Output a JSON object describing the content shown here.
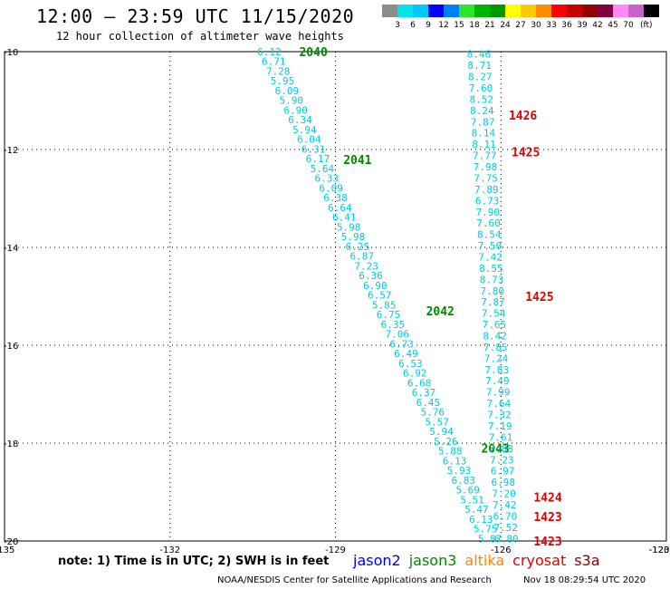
{
  "title": "12:00 – 23:59 UTC 11/15/2020",
  "subtitle": "12 hour collection of altimeter wave heights",
  "colorbar": {
    "unit": "(ft)",
    "colors": [
      "#8c8c8c",
      "#00e6e6",
      "#00c8ff",
      "#0000ff",
      "#0080ff",
      "#28e628",
      "#00b400",
      "#009600",
      "#ffff00",
      "#ffc800",
      "#ff8c00",
      "#ff0000",
      "#c80000",
      "#960000",
      "#800040",
      "#ff88ff",
      "#c864c8",
      "#000000"
    ],
    "labels": [
      "3",
      "6",
      "9",
      "12",
      "15",
      "18",
      "21",
      "24",
      "27",
      "30",
      "33",
      "36",
      "39",
      "42",
      "45",
      "70"
    ]
  },
  "chart_data": {
    "type": "scatter",
    "x_range": [
      -135,
      -123
    ],
    "y_range": [
      -20,
      -10
    ],
    "x_ticks": [
      "-135",
      "-132",
      "-129",
      "-126",
      "-123",
      "-120"
    ],
    "y_ticks": [
      "-10",
      "-12",
      "-14",
      "-16",
      "-18",
      "-20"
    ],
    "grid": true,
    "tracks": [
      {
        "satellite": "jason3",
        "color": "#00ccdd",
        "start": [
          -130.2,
          -10.0
        ],
        "end": [
          -126.2,
          -19.95
        ],
        "values": [
          "6.12",
          "6.71",
          "7.28",
          "5.95",
          "6.09",
          "5.90",
          "6.90",
          "6.34",
          "5.94",
          "6.04",
          "6.31",
          "6.17",
          "5.64",
          "6.33",
          "6.09",
          "6.38",
          "6.64",
          "6.41",
          "5.98",
          "5.98",
          "6.25",
          "6.87",
          "7.23",
          "6.36",
          "6.90",
          "6.57",
          "5.85",
          "6.75",
          "6.35",
          "7.06",
          "6.73",
          "6.49",
          "6.53",
          "6.92",
          "6.68",
          "6.37",
          "6.45",
          "5.76",
          "5.57",
          "5.94",
          "5.26",
          "5.88",
          "6.13",
          "5.93",
          "6.83",
          "5.69",
          "5.51",
          "5.47",
          "6.13",
          "5.75",
          "5.87"
        ],
        "time_labels": [
          {
            "text": "2040",
            "color": "#008800",
            "at": [
              -129.4,
              -10.0
            ]
          },
          {
            "text": "2041",
            "color": "#008800",
            "at": [
              -128.6,
              -12.2
            ]
          },
          {
            "text": "2042",
            "color": "#008800",
            "at": [
              -127.1,
              -15.3
            ]
          },
          {
            "text": "2043",
            "color": "#008800",
            "at": [
              -126.1,
              -18.1
            ]
          }
        ]
      },
      {
        "satellite": "jason2",
        "color": "#00ccdd",
        "start": [
          -126.4,
          -10.05
        ],
        "end": [
          -125.9,
          -19.95
        ],
        "values": [
          "8.46",
          "8.71",
          "8.27",
          "7.60",
          "8.52",
          "8.24",
          "7.87",
          "8.14",
          "8.11",
          "7.77",
          "7.98",
          "7.75",
          "7.89",
          "6.73",
          "7.90",
          "7.60",
          "8.54",
          "7.50",
          "7.42",
          "8.55",
          "8.73",
          "7.80",
          "7.87",
          "7.54",
          "7.65",
          "8.42",
          "7.85",
          "7.24",
          "7.83",
          "7.49",
          "7.99",
          "7.64",
          "7.32",
          "7.19",
          "7.61",
          "7.88",
          "7.23",
          "6.97",
          "6.98",
          "7.20",
          "7.42",
          "6.70",
          "7.52",
          "6.80"
        ],
        "time_labels": [
          {
            "text": "1426",
            "color": "#dd0000",
            "at": [
              -125.6,
              -11.3
            ]
          },
          {
            "text": "1425",
            "color": "#dd0000",
            "at": [
              -125.55,
              -12.05
            ]
          },
          {
            "text": "1425",
            "color": "#dd0000",
            "at": [
              -125.3,
              -15.0
            ]
          },
          {
            "text": "1424",
            "color": "#dd0000",
            "at": [
              -125.15,
              -19.1
            ]
          },
          {
            "text": "1423",
            "color": "#dd0000",
            "at": [
              -125.15,
              -19.5
            ]
          },
          {
            "text": "1423",
            "color": "#dd0000",
            "at": [
              -125.15,
              -20.0
            ]
          }
        ]
      }
    ]
  },
  "note": "note: 1) Time is in UTC; 2) SWH is in feet",
  "satellites": [
    {
      "name": "jason2",
      "color": "#0000ee"
    },
    {
      "name": "jason3",
      "color": "#008800"
    },
    {
      "name": "altika",
      "color": "#ff8800"
    },
    {
      "name": "cryosat",
      "color": "#dd0000"
    },
    {
      "name": "s3a",
      "color": "#880000"
    }
  ],
  "credit": "NOAA/NESDIS Center for Satellite Applications and Research",
  "timestamp": "Nov 18 08:29:54 UTC 2020"
}
